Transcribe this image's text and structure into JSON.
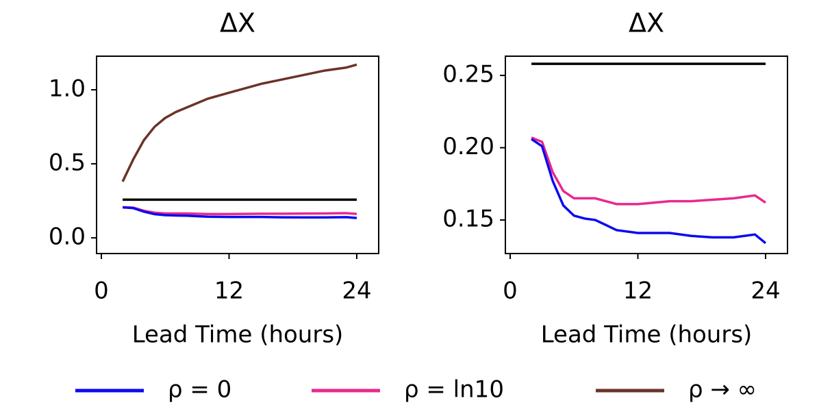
{
  "chart_data": [
    {
      "type": "line",
      "title": "ΔX",
      "x_label": "Lead Time (hours)",
      "x": [
        2,
        3,
        4,
        5,
        6,
        7,
        8,
        10,
        12,
        15,
        17,
        19,
        21,
        23,
        24
      ],
      "xlim": [
        -0.45,
        26.06
      ],
      "xticks": [
        0,
        12,
        24
      ],
      "ylim": [
        -0.106,
        1.227
      ],
      "yticks": [
        {
          "value": 0,
          "label": "0.0"
        },
        {
          "value": 0.5,
          "label": "0.5"
        },
        {
          "value": 1,
          "label": "1.0"
        }
      ],
      "series": [
        {
          "color": "#000000",
          "values": [
            0.258,
            0.258,
            0.258,
            0.258,
            0.258,
            0.258,
            0.258,
            0.258,
            0.258,
            0.258,
            0.258,
            0.258,
            0.258,
            0.258,
            0.258
          ]
        },
        {
          "name": "ρ = ln10",
          "color": "#e8298f",
          "values": [
            0.207,
            0.204,
            0.183,
            0.17,
            0.165,
            0.165,
            0.165,
            0.161,
            0.161,
            0.163,
            0.163,
            0.164,
            0.165,
            0.167,
            0.162
          ]
        },
        {
          "name": "ρ = 0",
          "color": "#0a0af0",
          "values": [
            0.206,
            0.201,
            0.177,
            0.16,
            0.153,
            0.151,
            0.15,
            0.143,
            0.141,
            0.141,
            0.139,
            0.138,
            0.138,
            0.14,
            0.134
          ]
        },
        {
          "name": "ρ → ∞",
          "color": "#6b3328",
          "values": [
            0.38,
            0.53,
            0.66,
            0.75,
            0.81,
            0.85,
            0.88,
            0.94,
            0.98,
            1.04,
            1.07,
            1.1,
            1.13,
            1.15,
            1.17
          ]
        }
      ]
    },
    {
      "type": "line",
      "title": "ΔX",
      "x_label": "Lead Time (hours)",
      "x": [
        2,
        3,
        4,
        5,
        6,
        7,
        8,
        10,
        12,
        15,
        17,
        19,
        21,
        23,
        24
      ],
      "xlim": [
        -0.45,
        26.06
      ],
      "xticks": [
        0,
        12,
        24
      ],
      "ylim": [
        0.1268,
        0.2633
      ],
      "yticks": [
        {
          "value": 0.15,
          "label": "0.15"
        },
        {
          "value": 0.2,
          "label": "0.20"
        },
        {
          "value": 0.25,
          "label": "0.25"
        }
      ],
      "series": [
        {
          "color": "#000000",
          "values": [
            0.258,
            0.258,
            0.258,
            0.258,
            0.258,
            0.258,
            0.258,
            0.258,
            0.258,
            0.258,
            0.258,
            0.258,
            0.258,
            0.258,
            0.258
          ]
        },
        {
          "color": "#e8298f",
          "values": [
            0.207,
            0.204,
            0.183,
            0.17,
            0.165,
            0.165,
            0.165,
            0.161,
            0.161,
            0.163,
            0.163,
            0.164,
            0.165,
            0.167,
            0.162
          ]
        },
        {
          "color": "#0a0af0",
          "values": [
            0.206,
            0.201,
            0.177,
            0.16,
            0.153,
            0.151,
            0.15,
            0.143,
            0.141,
            0.141,
            0.139,
            0.138,
            0.138,
            0.14,
            0.134
          ]
        }
      ]
    }
  ]
}
